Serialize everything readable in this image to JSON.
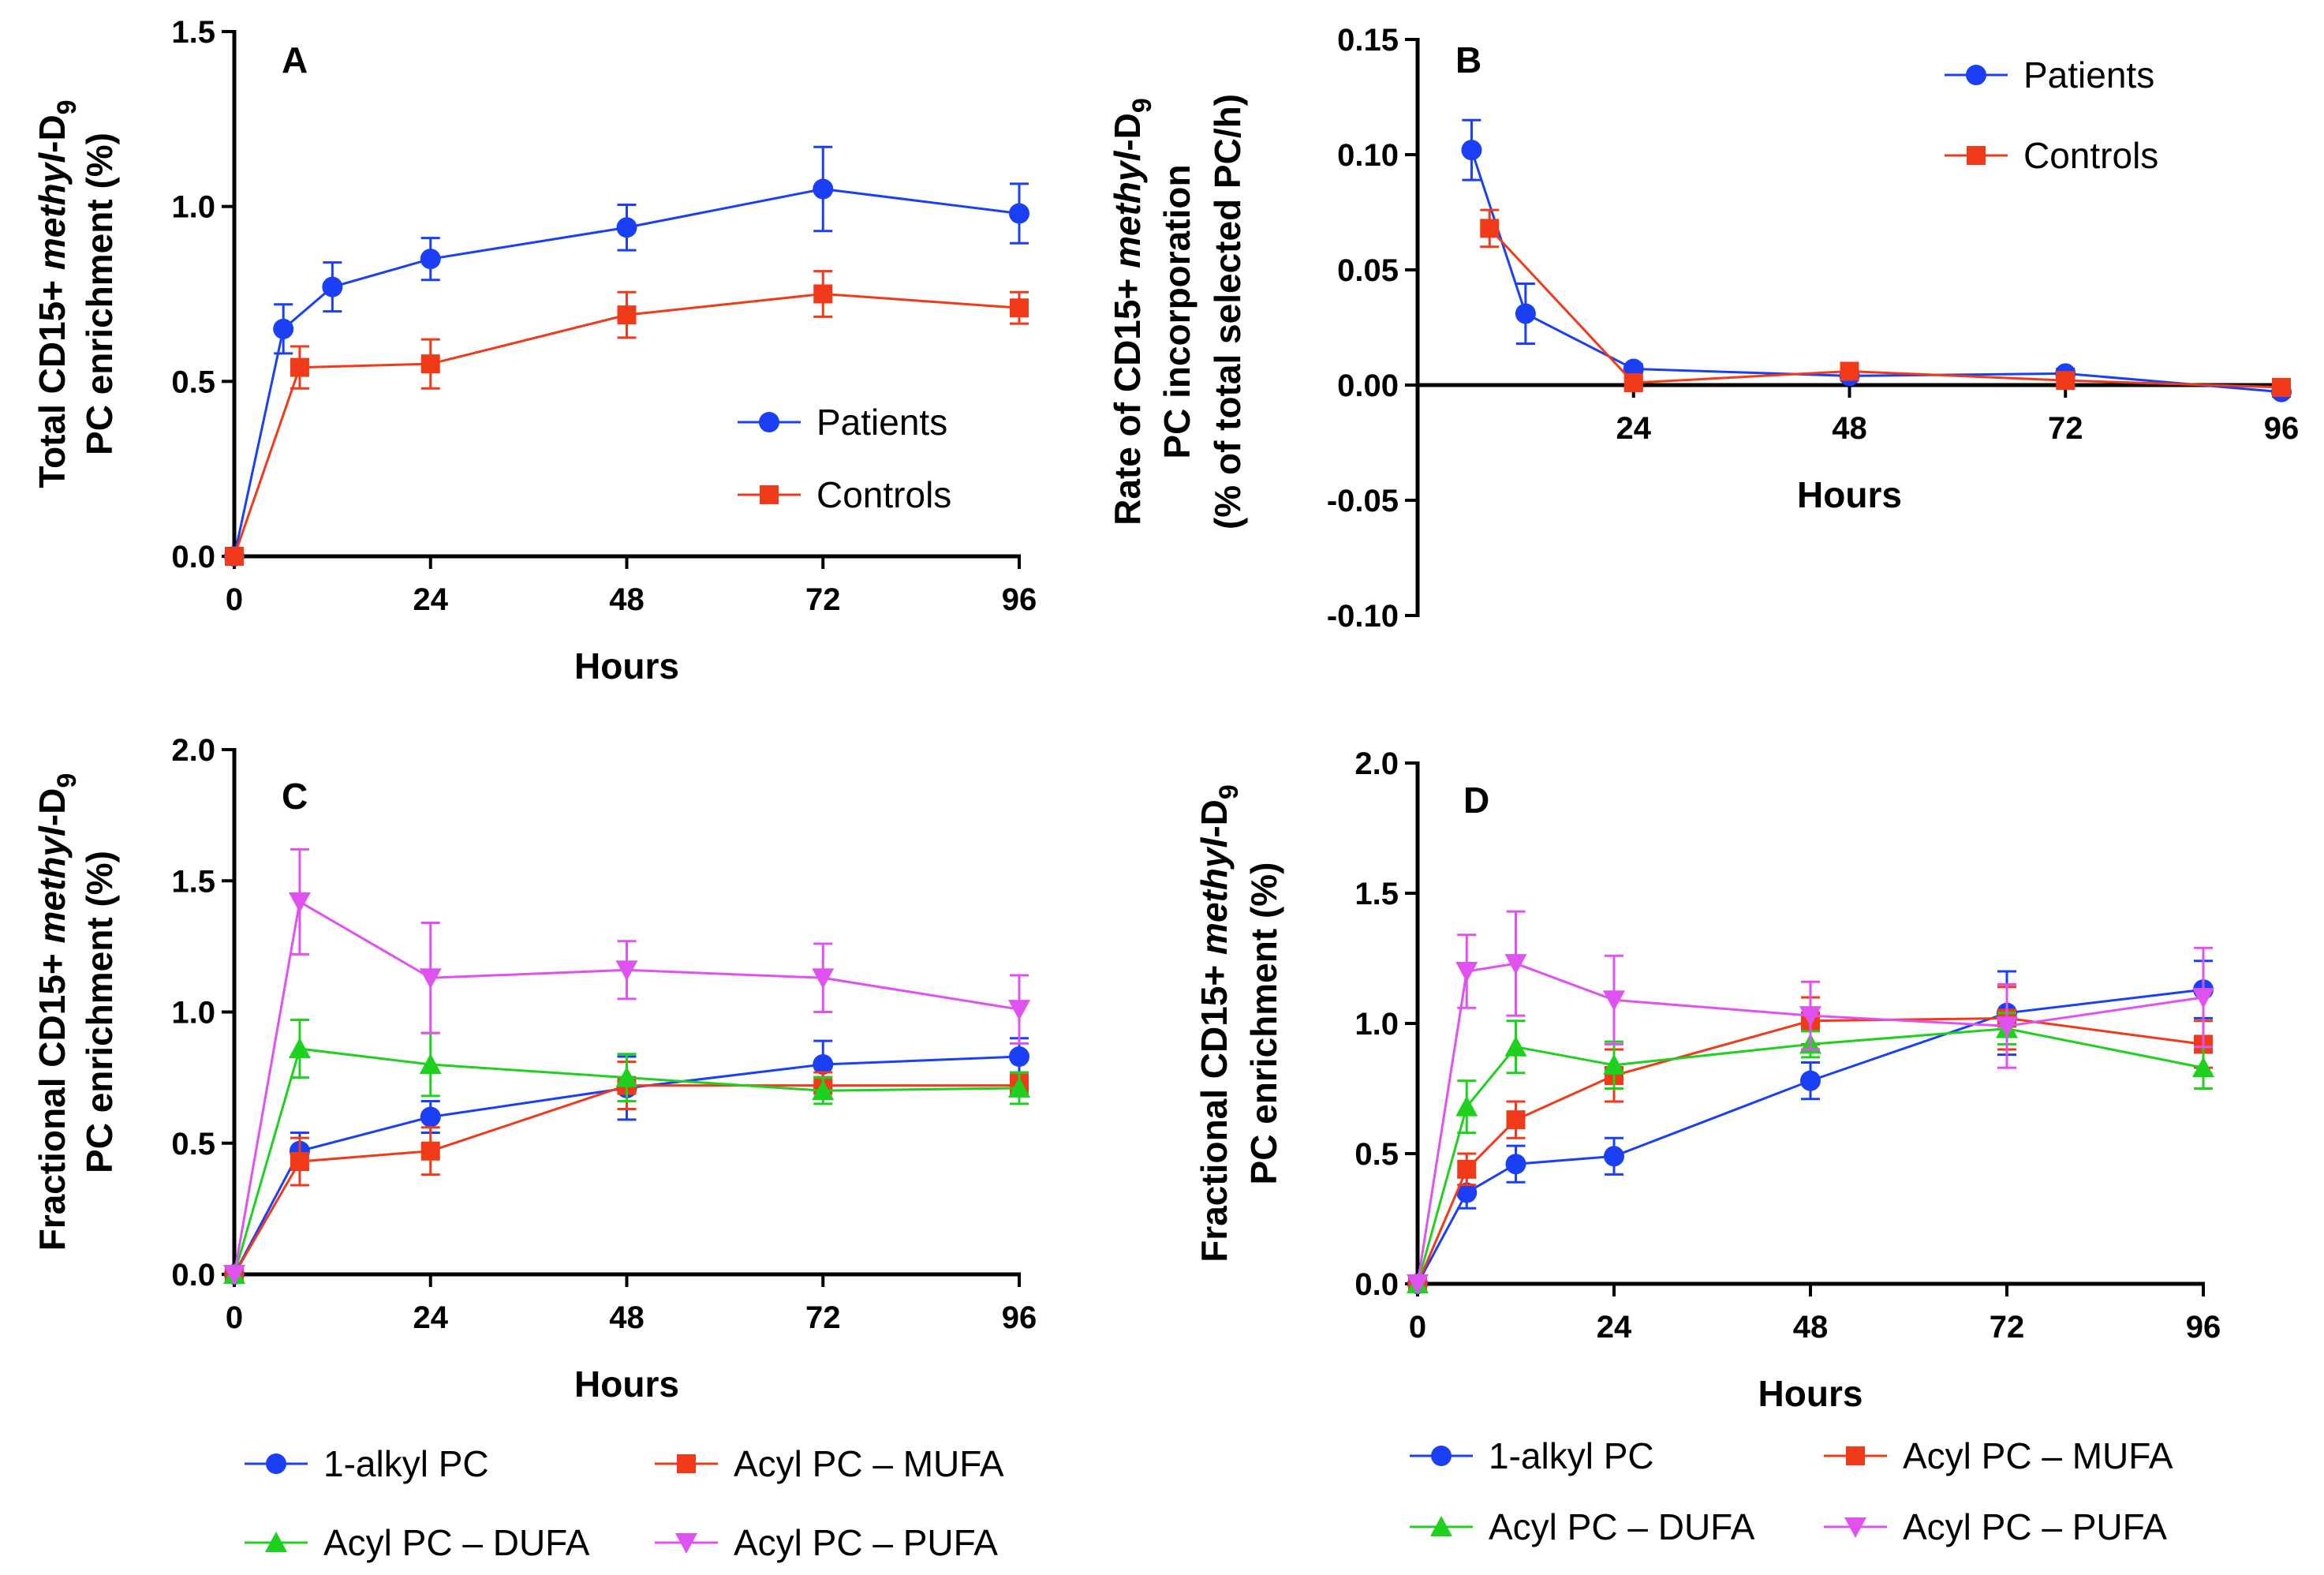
{
  "figure": {
    "panels": [
      "A",
      "B",
      "C",
      "D"
    ]
  },
  "chart_data": [
    {
      "type": "line",
      "panel": "A",
      "title": "",
      "xlabel": "Hours",
      "ylabel_line1": "Total CD15+ methyl-D9",
      "ylabel_line2": "PC enrichment (%)",
      "xlim": [
        0,
        96
      ],
      "ylim": [
        0,
        1.5
      ],
      "xticks": [
        "0",
        "24",
        "48",
        "72",
        "96"
      ],
      "yticks": [
        "0.0",
        "0.5",
        "1.0",
        "1.5"
      ],
      "legend_position": "center-right",
      "series": [
        {
          "name": "Patients",
          "color": "#1a3ff5",
          "marker": "circle",
          "points": [
            [
              0,
              0
            ],
            [
              6,
              0.65
            ],
            [
              12,
              0.77
            ],
            [
              24,
              0.85
            ],
            [
              48,
              0.94
            ],
            [
              72,
              1.05
            ],
            [
              96,
              0.98
            ]
          ],
          "errors": [
            0,
            0.07,
            0.07,
            0.06,
            0.065,
            0.12,
            0.085
          ]
        },
        {
          "name": "Controls",
          "color": "#f03a1a",
          "marker": "square",
          "points": [
            [
              0,
              0
            ],
            [
              8,
              0.54
            ],
            [
              24,
              0.55
            ],
            [
              48,
              0.69
            ],
            [
              72,
              0.75
            ],
            [
              96,
              0.71
            ]
          ],
          "errors": [
            0,
            0.06,
            0.07,
            0.065,
            0.065,
            0.045
          ]
        }
      ]
    },
    {
      "type": "line",
      "panel": "B",
      "title": "",
      "xlabel": "Hours",
      "ylabel_line1": "Rate of CD15+ methyl-D9",
      "ylabel_line2": "PC incorporation",
      "ylabel_line3": "(% of total selected PC/h)",
      "xlim": [
        0,
        96
      ],
      "ylim": [
        -0.1,
        0.15
      ],
      "xticks": [
        "24",
        "48",
        "72",
        "96"
      ],
      "yticks": [
        "-0.10",
        "-0.05",
        "0.00",
        "0.05",
        "0.10",
        "0.15"
      ],
      "legend_position": "top-right",
      "series": [
        {
          "name": "Patients",
          "color": "#1a3ff5",
          "marker": "circle",
          "points": [
            [
              6,
              0.102
            ],
            [
              12,
              0.031
            ],
            [
              24,
              0.007
            ],
            [
              48,
              0.004
            ],
            [
              72,
              0.005
            ],
            [
              96,
              -0.003
            ]
          ],
          "errors": [
            0.013,
            0.013,
            0.002,
            0.002,
            0.002,
            0.002
          ]
        },
        {
          "name": "Controls",
          "color": "#f03a1a",
          "marker": "square",
          "points": [
            [
              8,
              0.068
            ],
            [
              24,
              0.001
            ],
            [
              48,
              0.006
            ],
            [
              72,
              0.002
            ],
            [
              96,
              -0.001
            ]
          ],
          "errors": [
            0.008,
            0.002,
            0.002,
            0.002,
            0.002
          ]
        }
      ]
    },
    {
      "type": "line",
      "panel": "C",
      "title": "",
      "xlabel": "Hours",
      "ylabel_line1": "Fractional CD15+ methyl-D9",
      "ylabel_line2": "PC enrichment (%)",
      "xlim": [
        0,
        96
      ],
      "ylim": [
        0,
        2.0
      ],
      "xticks": [
        "0",
        "24",
        "48",
        "72",
        "96"
      ],
      "yticks": [
        "0.0",
        "0.5",
        "1.0",
        "1.5",
        "2.0"
      ],
      "legend_position": "bottom",
      "series": [
        {
          "name": "1-alkyl PC",
          "color": "#1a3ff5",
          "marker": "circle",
          "points": [
            [
              0,
              0
            ],
            [
              8,
              0.47
            ],
            [
              24,
              0.6
            ],
            [
              48,
              0.71
            ],
            [
              72,
              0.8
            ],
            [
              96,
              0.83
            ]
          ],
          "errors": [
            0,
            0.07,
            0.06,
            0.12,
            0.09,
            0.07
          ]
        },
        {
          "name": "Acyl PC – MUFA",
          "color": "#f03a1a",
          "marker": "square",
          "points": [
            [
              0,
              0
            ],
            [
              8,
              0.43
            ],
            [
              24,
              0.47
            ],
            [
              48,
              0.72
            ],
            [
              72,
              0.72
            ],
            [
              96,
              0.72
            ]
          ],
          "errors": [
            0,
            0.09,
            0.09,
            0.09,
            0.05,
            0.04
          ]
        },
        {
          "name": "Acyl PC – DUFA",
          "color": "#1fd11f",
          "marker": "triangle-up",
          "points": [
            [
              0,
              0
            ],
            [
              8,
              0.86
            ],
            [
              24,
              0.8
            ],
            [
              48,
              0.75
            ],
            [
              72,
              0.7
            ],
            [
              96,
              0.71
            ]
          ],
          "errors": [
            0,
            0.11,
            0.12,
            0.09,
            0.05,
            0.06
          ]
        },
        {
          "name": "Acyl PC – PUFA",
          "color": "#e052f0",
          "marker": "triangle-down",
          "points": [
            [
              0,
              0
            ],
            [
              8,
              1.42
            ],
            [
              24,
              1.13
            ],
            [
              48,
              1.16
            ],
            [
              72,
              1.13
            ],
            [
              96,
              1.01
            ]
          ],
          "errors": [
            0,
            0.2,
            0.21,
            0.11,
            0.13,
            0.13
          ]
        }
      ],
      "legend_order": [
        "1-alkyl PC",
        "Acyl PC – MUFA",
        "Acyl PC – DUFA",
        "Acyl PC – PUFA"
      ]
    },
    {
      "type": "line",
      "panel": "D",
      "title": "",
      "xlabel": "Hours",
      "ylabel_line1": "Fractional CD15+ methyl-D9",
      "ylabel_line2": "PC enrichment (%)",
      "xlim": [
        0,
        96
      ],
      "ylim": [
        0,
        2.0
      ],
      "xticks": [
        "0",
        "24",
        "48",
        "72",
        "96"
      ],
      "yticks": [
        "0.0",
        "0.5",
        "1.0",
        "1.5",
        "2.0"
      ],
      "legend_position": "bottom",
      "series": [
        {
          "name": "1-alkyl PC",
          "color": "#1a3ff5",
          "marker": "circle",
          "points": [
            [
              0,
              0
            ],
            [
              6,
              0.35
            ],
            [
              12,
              0.46
            ],
            [
              24,
              0.49
            ],
            [
              48,
              0.78
            ],
            [
              72,
              1.04
            ],
            [
              96,
              1.13
            ]
          ],
          "errors": [
            0,
            0.06,
            0.07,
            0.07,
            0.07,
            0.16,
            0.11
          ]
        },
        {
          "name": "Acyl PC – MUFA",
          "color": "#f03a1a",
          "marker": "square",
          "points": [
            [
              0,
              0
            ],
            [
              6,
              0.44
            ],
            [
              12,
              0.63
            ],
            [
              24,
              0.8
            ],
            [
              48,
              1.01
            ],
            [
              72,
              1.02
            ],
            [
              96,
              0.92
            ]
          ],
          "errors": [
            0,
            0.06,
            0.07,
            0.1,
            0.09,
            0.12,
            0.09
          ]
        },
        {
          "name": "Acyl PC – DUFA",
          "color": "#1fd11f",
          "marker": "triangle-up",
          "points": [
            [
              0,
              0
            ],
            [
              6,
              0.68
            ],
            [
              12,
              0.91
            ],
            [
              24,
              0.84
            ],
            [
              48,
              0.92
            ],
            [
              72,
              0.98
            ],
            [
              96,
              0.83
            ]
          ],
          "errors": [
            0,
            0.1,
            0.1,
            0.09,
            0.05,
            0.06,
            0.08
          ]
        },
        {
          "name": "Acyl PC – PUFA",
          "color": "#e052f0",
          "marker": "triangle-down",
          "points": [
            [
              0,
              0
            ],
            [
              6,
              1.2
            ],
            [
              12,
              1.23
            ],
            [
              24,
              1.09
            ],
            [
              48,
              1.03
            ],
            [
              72,
              0.99
            ],
            [
              96,
              1.1
            ]
          ],
          "errors": [
            0,
            0.14,
            0.2,
            0.17,
            0.13,
            0.16,
            0.19
          ]
        }
      ],
      "legend_order": [
        "1-alkyl PC",
        "Acyl PC – MUFA",
        "Acyl PC – DUFA",
        "Acyl PC – PUFA"
      ]
    }
  ]
}
